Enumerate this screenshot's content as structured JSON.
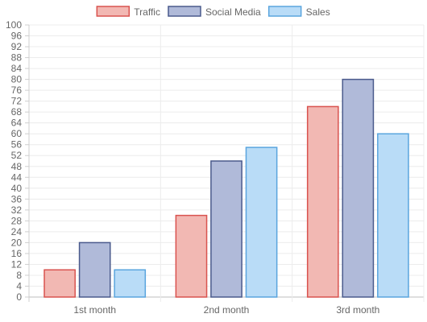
{
  "chart_data": {
    "type": "bar",
    "categories": [
      "1st month",
      "2nd month",
      "3rd month"
    ],
    "series": [
      {
        "name": "Traffic",
        "values": [
          10,
          30,
          70
        ],
        "fill": "#f2b8b3",
        "stroke": "#d9534f"
      },
      {
        "name": "Social Media",
        "values": [
          20,
          50,
          80
        ],
        "fill": "#b0bad9",
        "stroke": "#4a5a8c"
      },
      {
        "name": "Sales",
        "values": [
          10,
          55,
          60
        ],
        "fill": "#b9dcf7",
        "stroke": "#5aa5de"
      }
    ],
    "title": "",
    "xlabel": "",
    "ylabel": "",
    "ylim": [
      0,
      100
    ],
    "ytick_step": 4,
    "grid": true,
    "legend": "top"
  }
}
